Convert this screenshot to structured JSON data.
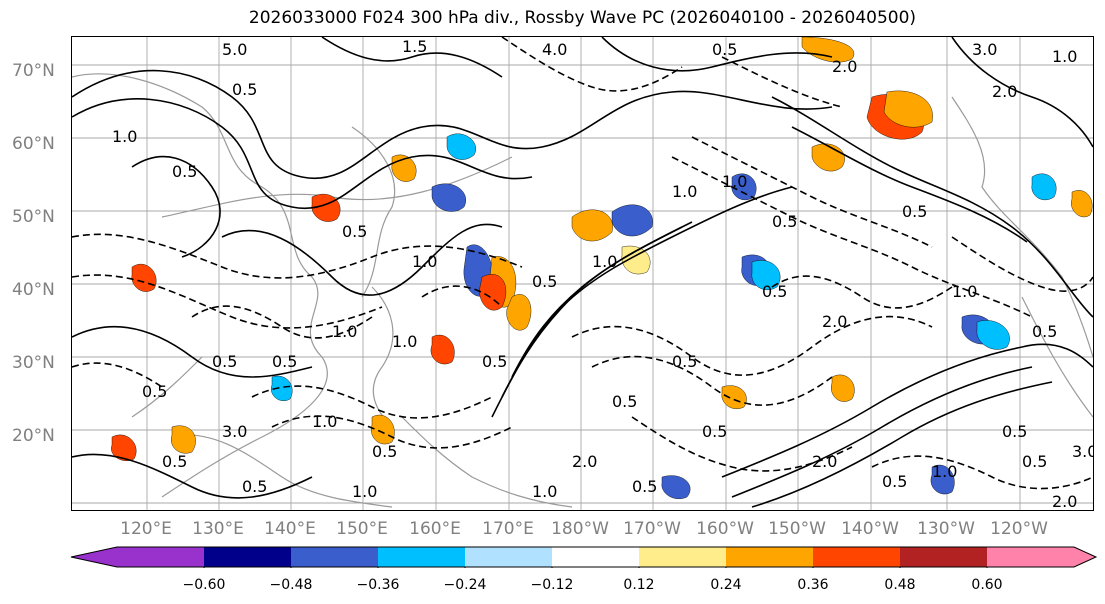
{
  "title": "2026033000 F024 300 hPa div., Rossby Wave PC (2026040100 - 2026040500)",
  "lat_labels": [
    "70°N",
    "60°N",
    "50°N",
    "40°N",
    "30°N",
    "20°N"
  ],
  "lon_labels": [
    "120°E",
    "130°E",
    "140°E",
    "150°E",
    "160°E",
    "170°E",
    "180°W",
    "170°W",
    "160°W",
    "150°W",
    "140°W",
    "130°W",
    "120°W"
  ],
  "colorbar": {
    "colors": [
      "#9932CC",
      "#00008B",
      "#3A5FCD",
      "#00BFFF",
      "#B0E2FF",
      "#FFFFFF",
      "#FFEC8B",
      "#FFA500",
      "#FF4500",
      "#B22222",
      "#FF82AB"
    ],
    "ticks": [
      "−0.60",
      "−0.48",
      "−0.36",
      "−0.24",
      "−0.12",
      "0.12",
      "0.24",
      "0.36",
      "0.48",
      "0.60"
    ]
  },
  "contour_labels": [
    "5.0",
    "1.5",
    "4.0",
    "0.5",
    "2.0",
    "3.0",
    "1.0",
    "0.5",
    "2.0",
    "1.0",
    "0.5",
    "1.0",
    "0.5",
    "1.0",
    "0.5",
    "2.0",
    "0.5",
    "1.0",
    "0.5",
    "0.5",
    "1.0",
    "0.5",
    "3.0",
    "2.0",
    "0.5",
    "1.0",
    "0.5",
    "0.5",
    "2.0",
    "0.5",
    "1.0",
    "0.5",
    "0.5",
    "2.0",
    "3.0",
    "1.0",
    "0.5",
    "1.0",
    "0.5",
    "1.0",
    "0.5",
    "0.5",
    "1.0",
    "0.5",
    "0.5",
    "0.5",
    "1.0",
    "0.5"
  ]
}
